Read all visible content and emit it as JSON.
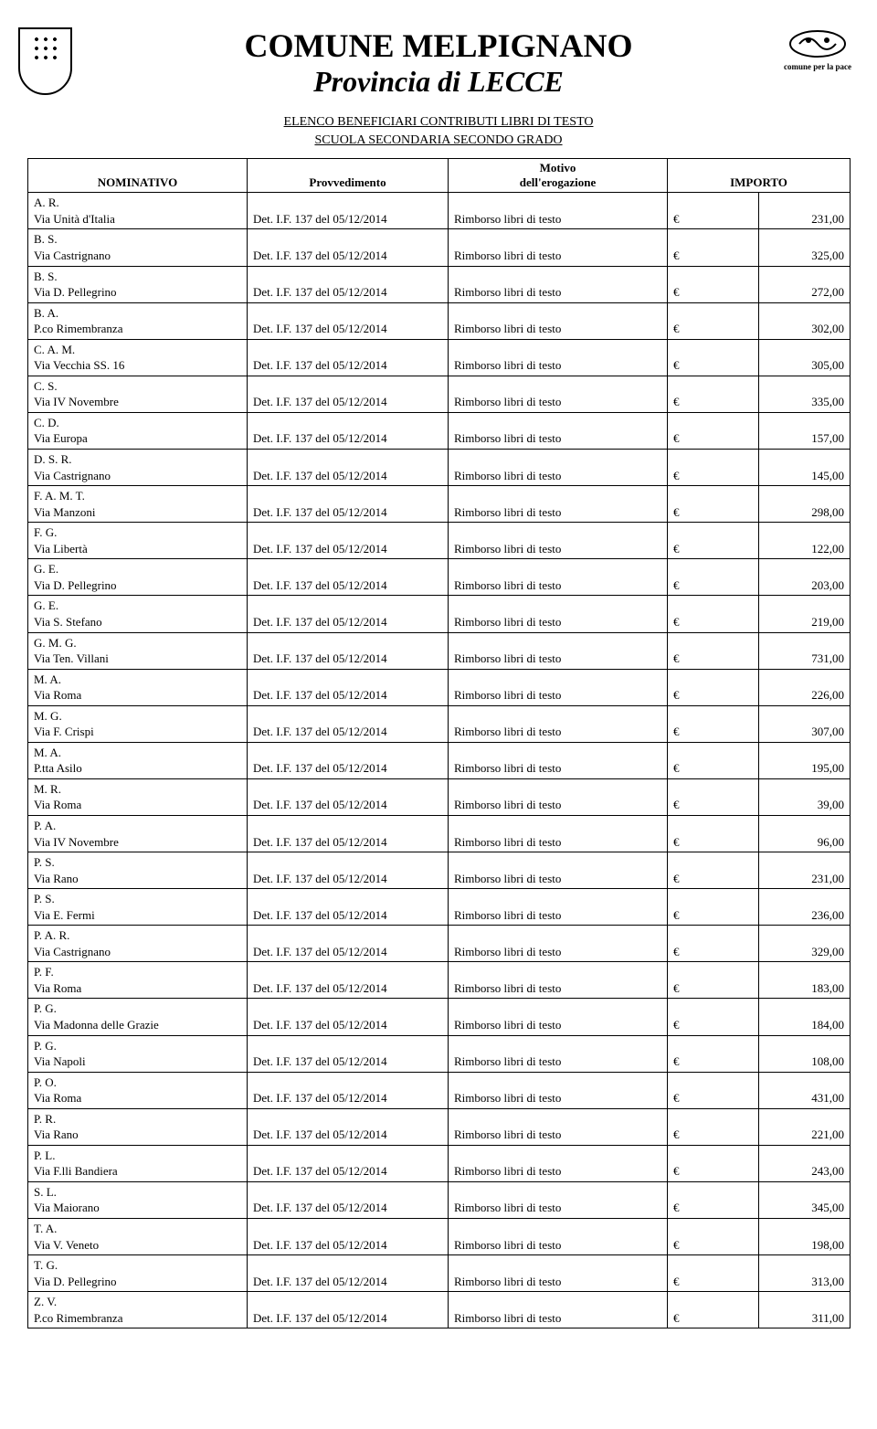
{
  "header": {
    "title": "COMUNE MELPIGNANO",
    "subtitle": "Provincia   di   LECCE",
    "crest_right_caption": "comune per la pace"
  },
  "elenco": {
    "line1": "ELENCO   BENEFICIARI  CONTRIBUTI  LIBRI DI TESTO",
    "line2": "SCUOLA    SECONDARIA  SECONDO    GRADO"
  },
  "columns": {
    "nominativo": "NOMINATIVO",
    "provvedimento": "Provvedimento",
    "motivo_line1": "Motivo",
    "motivo_line2": "dell'erogazione",
    "importo": "IMPORTO"
  },
  "common": {
    "provvedimento": "Det. I.F. 137 del 05/12/2014",
    "motivo": "Rimborso  libri di testo",
    "currency": "€"
  },
  "rows": [
    {
      "init": "A. R.",
      "addr": "Via Unità d'Italia",
      "amount": "231,00"
    },
    {
      "init": "B. S.",
      "addr": "Via Castrignano",
      "amount": "325,00"
    },
    {
      "init": "B. S.",
      "addr": "Via D. Pellegrino",
      "amount": "272,00"
    },
    {
      "init": "B. A.",
      "addr": "P.co Rimembranza",
      "amount": "302,00"
    },
    {
      "init": "C. A. M.",
      "addr": "Via Vecchia SS. 16",
      "amount": "305,00"
    },
    {
      "init": "C. S.",
      "addr": "Via IV Novembre",
      "amount": "335,00"
    },
    {
      "init": "C. D.",
      "addr": "Via Europa",
      "amount": "157,00"
    },
    {
      "init": "D. S. R.",
      "addr": "Via Castrignano",
      "amount": "145,00"
    },
    {
      "init": "F. A. M. T.",
      "addr": "Via Manzoni",
      "amount": "298,00"
    },
    {
      "init": "F. G.",
      "addr": "Via Libertà",
      "amount": "122,00"
    },
    {
      "init": "G. E.",
      "addr": "Via D. Pellegrino",
      "amount": "203,00"
    },
    {
      "init": "G. E.",
      "addr": "Via S. Stefano",
      "amount": "219,00"
    },
    {
      "init": "G. M. G.",
      "addr": "Via Ten. Villani",
      "amount": "731,00"
    },
    {
      "init": "M. A.",
      "addr": "Via Roma",
      "amount": "226,00"
    },
    {
      "init": "M. G.",
      "addr": "Via F. Crispi",
      "amount": "307,00"
    },
    {
      "init": "M. A.",
      "addr": "P.tta Asilo",
      "amount": "195,00"
    },
    {
      "init": "M. R.",
      "addr": "Via Roma",
      "amount": "39,00"
    },
    {
      "init": "P. A.",
      "addr": "Via IV Novembre",
      "amount": "96,00"
    },
    {
      "init": "P. S.",
      "addr": "Via Rano",
      "amount": "231,00"
    },
    {
      "init": "P. S.",
      "addr": "Via E. Fermi",
      "amount": "236,00"
    },
    {
      "init": "P. A. R.",
      "addr": "Via  Castrignano",
      "amount": "329,00"
    },
    {
      "init": "P. F.",
      "addr": "Via Roma",
      "amount": "183,00"
    },
    {
      "init": "P. G.",
      "addr": "Via  Madonna delle Grazie",
      "amount": "184,00"
    },
    {
      "init": "P. G.",
      "addr": "Via Napoli",
      "amount": "108,00"
    },
    {
      "init": "P. O.",
      "addr": "Via Roma",
      "amount": "431,00"
    },
    {
      "init": "P. R.",
      "addr": "Via Rano",
      "amount": "221,00"
    },
    {
      "init": "P. L.",
      "addr": "Via F.lli Bandiera",
      "amount": "243,00"
    },
    {
      "init": "S. L.",
      "addr": "Via Maiorano",
      "amount": "345,00"
    },
    {
      "init": "T. A.",
      "addr": "Via V. Veneto",
      "amount": "198,00"
    },
    {
      "init": "T. G.",
      "addr": "Via D. Pellegrino",
      "amount": "313,00"
    },
    {
      "init": "Z. V.",
      "addr": "P.co Rimembranza",
      "amount": "311,00"
    }
  ]
}
